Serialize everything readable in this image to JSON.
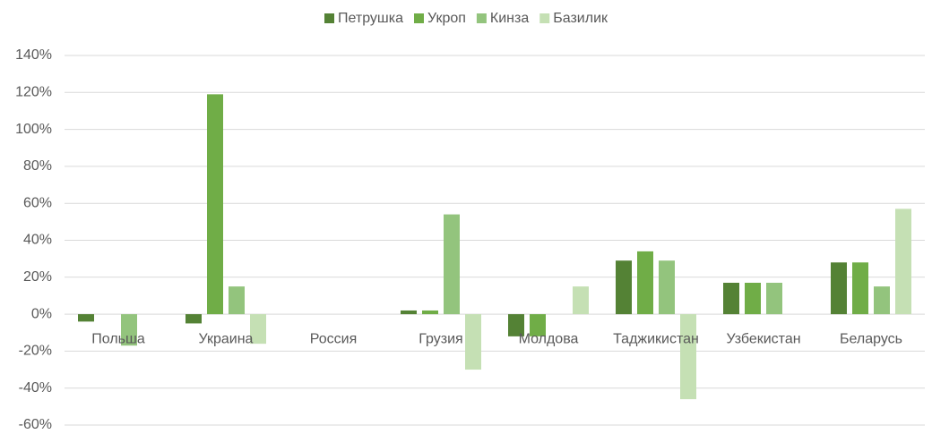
{
  "chart_data": {
    "type": "bar",
    "categories": [
      "Польша",
      "Украина",
      "Россия",
      "Грузия",
      "Молдова",
      "Таджикистан",
      "Узбекистан",
      "Беларусь"
    ],
    "series": [
      {
        "name": "Петрушка",
        "color": "#548235",
        "values": [
          -4,
          -5,
          0,
          2,
          -12,
          29,
          17,
          28
        ]
      },
      {
        "name": "Укроп",
        "color": "#70ad47",
        "values": [
          0,
          119,
          0,
          2,
          -12,
          34,
          17,
          28
        ]
      },
      {
        "name": "Кинза",
        "color": "#93c47d",
        "values": [
          -17,
          15,
          0,
          54,
          0,
          29,
          17,
          15
        ]
      },
      {
        "name": "Базилик",
        "color": "#c5e0b4",
        "values": [
          0,
          -16,
          0,
          -30,
          15,
          -46,
          0,
          57
        ]
      }
    ],
    "ylim": [
      -60,
      140
    ],
    "yticks": [
      {
        "value": -60,
        "label": "-60%"
      },
      {
        "value": -40,
        "label": "-40%"
      },
      {
        "value": -20,
        "label": "-20%"
      },
      {
        "value": 0,
        "label": "0%"
      },
      {
        "value": 20,
        "label": "20%"
      },
      {
        "value": 40,
        "label": "40%"
      },
      {
        "value": 60,
        "label": "60%"
      },
      {
        "value": 80,
        "label": "80%"
      },
      {
        "value": 100,
        "label": "100%"
      },
      {
        "value": 120,
        "label": "120%"
      },
      {
        "value": 140,
        "label": "140%"
      }
    ],
    "grid": true,
    "legend": "top"
  }
}
